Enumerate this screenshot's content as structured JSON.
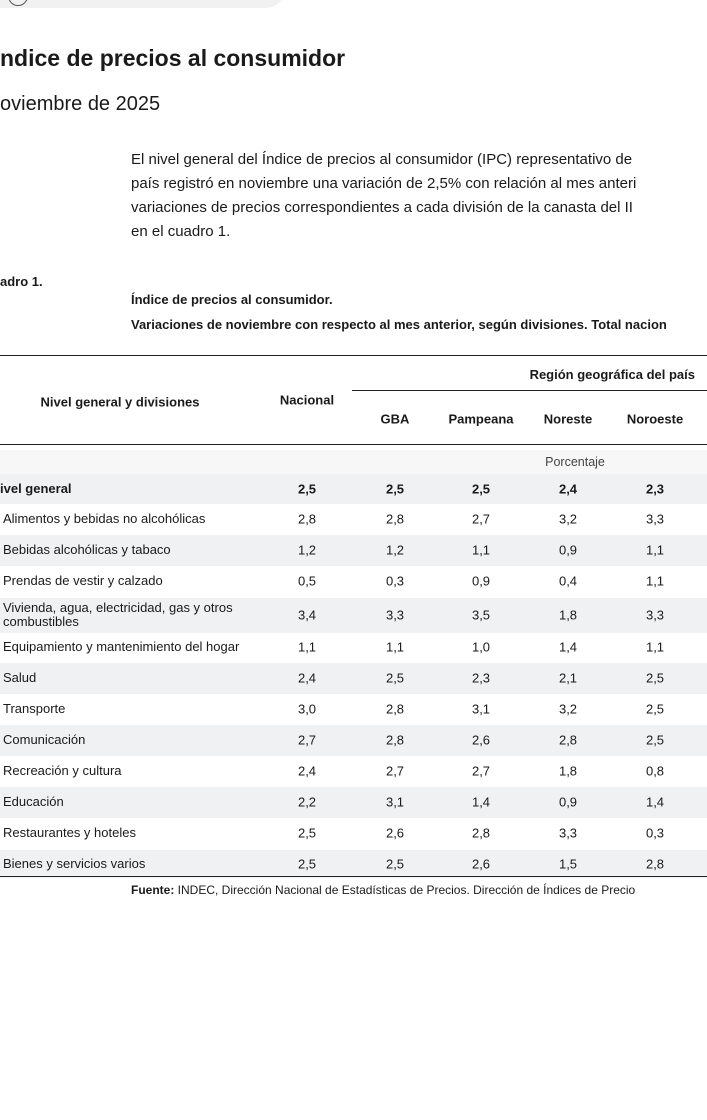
{
  "header": {
    "title": "ndice de precios al consumidor",
    "subtitle": "oviembre de 2025"
  },
  "paragraph": [
    "El nivel general del Índice de precios al consumidor (IPC) representativo de",
    "país registró en noviembre una variación de 2,5% con relación al mes anteri",
    "variaciones de precios correspondientes a cada división de la canasta del II",
    "en el cuadro 1."
  ],
  "table_label": "adro 1.",
  "table_title": [
    "Índice de precios al consumidor.",
    "Variaciones de noviembre con respecto al mes anterior, según divisiones. Total nacion"
  ],
  "table": {
    "columns": {
      "label": "Nivel general y divisiones",
      "national": "Nacional",
      "region": "Región geográfica del país",
      "regions": [
        "GBA",
        "Pampeana",
        "Noreste",
        "Noroeste"
      ]
    },
    "unit": "Porcentaje",
    "rows": [
      [
        "ivel general",
        "2,5",
        "2,5",
        "2,5",
        "2,4",
        "2,3"
      ],
      [
        "Alimentos y bebidas no alcohólicas",
        "2,8",
        "2,8",
        "2,7",
        "3,2",
        "3,3"
      ],
      [
        "Bebidas alcohólicas y tabaco",
        "1,2",
        "1,2",
        "1,1",
        "0,9",
        "1,1"
      ],
      [
        "Prendas de vestir y calzado",
        "0,5",
        "0,3",
        "0,9",
        "0,4",
        "1,1"
      ],
      [
        "Vivienda, agua, electricidad, gas y otros combustibles",
        "3,4",
        "3,3",
        "3,5",
        "1,8",
        "3,3"
      ],
      [
        "Equipamiento y mantenimiento del hogar",
        "1,1",
        "1,1",
        "1,0",
        "1,4",
        "1,1"
      ],
      [
        "Salud",
        "2,4",
        "2,5",
        "2,3",
        "2,1",
        "2,5"
      ],
      [
        "Transporte",
        "3,0",
        "2,8",
        "3,1",
        "3,2",
        "2,5"
      ],
      [
        "Comunicación",
        "2,7",
        "2,8",
        "2,6",
        "2,8",
        "2,5"
      ],
      [
        "Recreación y cultura",
        "2,4",
        "2,7",
        "2,7",
        "1,8",
        "0,8"
      ],
      [
        "Educación",
        "2,2",
        "3,1",
        "1,4",
        "0,9",
        "1,4"
      ],
      [
        "Restaurantes y hoteles",
        "2,5",
        "2,6",
        "2,8",
        "3,3",
        "0,3"
      ],
      [
        "Bienes y servicios varios",
        "2,5",
        "2,5",
        "2,6",
        "1,5",
        "2,8"
      ]
    ]
  },
  "source": {
    "label": "Fuente:",
    "text": " INDEC, Dirección Nacional de Estadísticas de Precios. Dirección de Índices de Precio"
  }
}
